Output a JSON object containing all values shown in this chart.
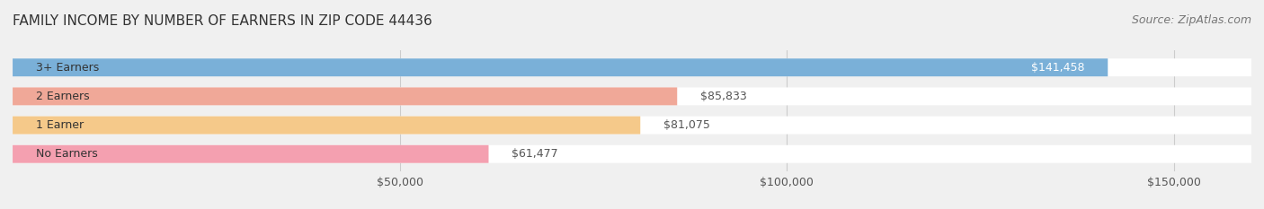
{
  "title": "FAMILY INCOME BY NUMBER OF EARNERS IN ZIP CODE 44436",
  "source": "Source: ZipAtlas.com",
  "categories": [
    "No Earners",
    "1 Earner",
    "2 Earners",
    "3+ Earners"
  ],
  "values": [
    61477,
    81075,
    85833,
    141458
  ],
  "bar_colors": [
    "#f4a0b0",
    "#f5c98a",
    "#f0a898",
    "#7ab0d8"
  ],
  "label_colors": [
    "#555555",
    "#555555",
    "#555555",
    "#ffffff"
  ],
  "bar_bg_color": "#ffffff",
  "background_color": "#f0f0f0",
  "xlim": [
    0,
    160000
  ],
  "xticks": [
    50000,
    100000,
    150000
  ],
  "xtick_labels": [
    "$50,000",
    "$100,000",
    "$150,000"
  ],
  "title_fontsize": 11,
  "source_fontsize": 9,
  "label_fontsize": 9,
  "value_fontsize": 9,
  "category_fontsize": 9
}
